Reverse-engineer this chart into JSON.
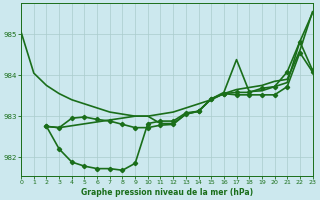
{
  "line1": {
    "x": [
      0,
      1,
      2,
      3,
      4,
      5,
      6,
      7,
      8,
      9,
      10,
      11,
      12,
      13,
      14,
      15,
      16,
      17,
      18,
      19,
      20,
      21,
      22,
      23
    ],
    "y": [
      985.05,
      984.05,
      983.75,
      983.55,
      983.4,
      983.3,
      983.2,
      983.1,
      983.05,
      983.0,
      983.0,
      983.05,
      983.1,
      983.2,
      983.3,
      983.4,
      983.55,
      983.65,
      983.7,
      983.75,
      983.85,
      983.9,
      984.6,
      985.55
    ],
    "color": "#1a6e1a",
    "marker": null,
    "lw": 1.2
  },
  "line2": {
    "x": [
      2,
      3,
      4,
      5,
      6,
      7,
      8,
      9,
      10,
      11,
      12,
      13,
      14,
      15,
      16,
      17,
      18,
      19,
      20,
      21,
      22,
      23
    ],
    "y": [
      982.75,
      982.2,
      981.88,
      981.78,
      981.72,
      981.72,
      981.68,
      981.85,
      982.82,
      982.88,
      982.88,
      983.08,
      983.12,
      983.42,
      983.55,
      983.58,
      983.58,
      983.68,
      983.72,
      984.08,
      984.82,
      984.12
    ],
    "color": "#1a6e1a",
    "marker": "D",
    "markersize": 2.2,
    "lw": 1.2
  },
  "line3": {
    "x": [
      2,
      3,
      4,
      5,
      6,
      7,
      8,
      9,
      10,
      11,
      12,
      13,
      14,
      15,
      16,
      17,
      18,
      19,
      20,
      21,
      22,
      23
    ],
    "y": [
      982.75,
      982.72,
      982.95,
      982.98,
      982.92,
      982.88,
      982.8,
      982.72,
      982.72,
      982.78,
      982.8,
      983.05,
      983.12,
      983.42,
      983.55,
      983.52,
      983.52,
      983.52,
      983.52,
      983.72,
      984.55,
      984.08
    ],
    "color": "#1a6e1a",
    "marker": "D",
    "markersize": 2.2,
    "lw": 1.2
  },
  "line4": {
    "x": [
      2,
      3,
      9,
      10,
      11,
      12,
      13,
      14,
      15,
      16,
      17,
      18,
      19,
      20,
      21,
      22,
      23
    ],
    "y": [
      982.75,
      982.72,
      983.0,
      983.0,
      982.82,
      982.82,
      983.05,
      983.12,
      983.42,
      983.58,
      984.38,
      983.6,
      983.62,
      983.72,
      983.82,
      984.82,
      985.52
    ],
    "color": "#1a6e1a",
    "marker": null,
    "lw": 1.2
  },
  "xlim": [
    0,
    23
  ],
  "ylim": [
    981.55,
    985.75
  ],
  "yticks": [
    982,
    983,
    984,
    985
  ],
  "xticks": [
    0,
    1,
    2,
    3,
    4,
    5,
    6,
    7,
    8,
    9,
    10,
    11,
    12,
    13,
    14,
    15,
    16,
    17,
    18,
    19,
    20,
    21,
    22,
    23
  ],
  "xlabel": "Graphe pression niveau de la mer (hPa)",
  "bg_color": "#cce8ee",
  "grid_color": "#aacccc",
  "line_color": "#1a6e1a",
  "tick_color": "#1a6e1a",
  "label_color": "#1a6e1a",
  "axis_color": "#1a6e1a"
}
